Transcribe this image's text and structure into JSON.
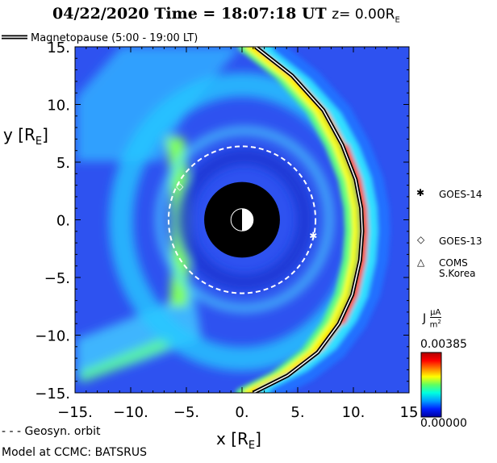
{
  "header": {
    "title_main": "04/22/2020 Time = 18:07:18 UT",
    "title_z": "z= 0.00R",
    "title_z_sub": "E"
  },
  "legend": {
    "magnetopause": "Magnetopause (5:00 - 19:00 LT)",
    "geosync": "- - - Geosyn. orbit"
  },
  "footer": {
    "model": "Model at CCMC: BATSRUS"
  },
  "colorbar": {
    "label": "J",
    "unit_num": "μA",
    "unit_den": "m",
    "unit_den_sup": "2",
    "max_label": "0.00385",
    "min_label": "0.00000",
    "colors": [
      "#0000a0",
      "#0020ff",
      "#00a0ff",
      "#00ffe0",
      "#60ff60",
      "#ffff00",
      "#ff8000",
      "#ff0000",
      "#b00000"
    ]
  },
  "satellites": [
    {
      "name": "GOES-14",
      "symbol": "✱",
      "x": 6.4,
      "y": -1.4
    },
    {
      "name": "GOES-13",
      "symbol": "◇",
      "x": -5.6,
      "y": 2.9
    },
    {
      "name": "COMS\nS.Korea",
      "symbol": "△"
    }
  ],
  "chart_data": {
    "type": "heatmap",
    "title": "04/22/2020 Time = 18:07:18 UT z= 0.00RE",
    "xlabel": "x [R",
    "xlabel_sub": "E",
    "ylabel": "y [R",
    "ylabel_sub": "E",
    "xlim": [
      -15,
      15
    ],
    "ylim": [
      -15,
      15
    ],
    "xticks": [
      -15,
      -10,
      -5,
      0,
      5,
      10,
      15
    ],
    "xtick_labels": [
      "−15.",
      "−10.",
      "−5.",
      "0.",
      "5.",
      "10.",
      "15"
    ],
    "yticks": [
      15,
      10,
      5,
      0,
      -5,
      -10,
      -15
    ],
    "ytick_labels": [
      "15.",
      "10.",
      "5.",
      "0.",
      "−5.",
      "−10.",
      "−15."
    ],
    "colorbar_range": [
      0,
      0.00385
    ],
    "earth_radius": 1,
    "inner_boundary_radius": 3.4,
    "geosync_radius": 6.6,
    "magnetopause": {
      "x": [
        1.2,
        4.5,
        7.3,
        9.0,
        10.2,
        10.7,
        10.8,
        10.6,
        9.9,
        8.7,
        6.8,
        4.1,
        1.0
      ],
      "y": [
        15,
        12.5,
        9.5,
        6.5,
        3.5,
        1.0,
        -1.0,
        -3.5,
        -6.5,
        -9.0,
        -11.5,
        -13.5,
        -15
      ]
    }
  }
}
